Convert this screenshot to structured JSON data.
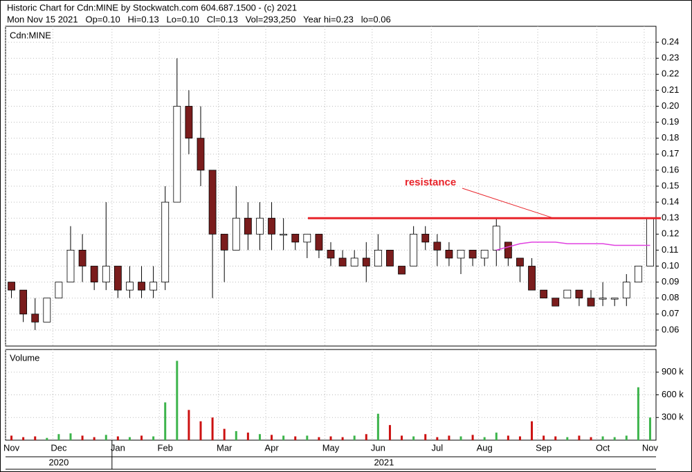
{
  "header": {
    "line1": "Historic Chart for Cdn:MINE by Stockwatch.com 604.687.1500 - (c) 2021",
    "line2": "Mon Nov 15 2021   Op=0.10   Hi=0.13   Lo=0.10   Cl=0.13   Vol=293,250   Year hi=0.23   lo=0.06"
  },
  "chart_data": [
    {
      "type": "candlestick",
      "title": "Cdn:MINE",
      "open": [
        0.09,
        0.085,
        0.07,
        0.065,
        0.08,
        0.09,
        0.11,
        0.1,
        0.09,
        0.1,
        0.085,
        0.09,
        0.085,
        0.09,
        0.14,
        0.2,
        0.18,
        0.16,
        0.12,
        0.11,
        0.13,
        0.12,
        0.13,
        0.12,
        0.12,
        0.115,
        0.12,
        0.11,
        0.105,
        0.1,
        0.105,
        0.1,
        0.11,
        0.1,
        0.1,
        0.12,
        0.115,
        0.11,
        0.105,
        0.11,
        0.105,
        0.11,
        0.115,
        0.105,
        0.1,
        0.085,
        0.08,
        0.08,
        0.085,
        0.08,
        0.08,
        0.08,
        0.08,
        0.09,
        0.1
      ],
      "high": [
        0.09,
        0.085,
        0.08,
        0.08,
        0.09,
        0.125,
        0.12,
        0.1,
        0.14,
        0.1,
        0.1,
        0.1,
        0.1,
        0.15,
        0.23,
        0.21,
        0.2,
        0.16,
        0.12,
        0.15,
        0.14,
        0.14,
        0.14,
        0.13,
        0.12,
        0.12,
        0.12,
        0.115,
        0.11,
        0.11,
        0.115,
        0.12,
        0.11,
        0.1,
        0.125,
        0.125,
        0.12,
        0.115,
        0.11,
        0.11,
        0.11,
        0.13,
        0.115,
        0.105,
        0.105,
        0.085,
        0.08,
        0.085,
        0.085,
        0.085,
        0.09,
        0.08,
        0.095,
        0.1,
        0.13
      ],
      "low": [
        0.08,
        0.065,
        0.06,
        0.065,
        0.08,
        0.09,
        0.09,
        0.085,
        0.085,
        0.08,
        0.08,
        0.08,
        0.08,
        0.085,
        0.14,
        0.17,
        0.15,
        0.08,
        0.09,
        0.11,
        0.11,
        0.11,
        0.11,
        0.11,
        0.11,
        0.105,
        0.105,
        0.1,
        0.1,
        0.1,
        0.09,
        0.1,
        0.1,
        0.095,
        0.1,
        0.11,
        0.1,
        0.1,
        0.095,
        0.1,
        0.1,
        0.1,
        0.1,
        0.09,
        0.085,
        0.08,
        0.075,
        0.08,
        0.075,
        0.075,
        0.075,
        0.075,
        0.075,
        0.09,
        0.1
      ],
      "close": [
        0.085,
        0.07,
        0.065,
        0.08,
        0.09,
        0.11,
        0.1,
        0.09,
        0.1,
        0.085,
        0.09,
        0.085,
        0.09,
        0.14,
        0.2,
        0.18,
        0.16,
        0.12,
        0.11,
        0.13,
        0.12,
        0.13,
        0.12,
        0.12,
        0.115,
        0.12,
        0.11,
        0.105,
        0.1,
        0.105,
        0.1,
        0.11,
        0.1,
        0.095,
        0.12,
        0.115,
        0.11,
        0.105,
        0.11,
        0.105,
        0.11,
        0.125,
        0.105,
        0.1,
        0.085,
        0.08,
        0.075,
        0.085,
        0.08,
        0.075,
        0.08,
        0.08,
        0.09,
        0.1,
        0.13
      ],
      "up_color": "#ffffff",
      "down_color": "#7a1c1c",
      "ylim": [
        0.05,
        0.25
      ],
      "yticks": [
        0.06,
        0.07,
        0.08,
        0.09,
        {
          "value": 0.1,
          "label": "0.10"
        },
        0.11,
        0.12,
        0.13,
        0.14,
        0.15,
        0.16,
        0.17,
        0.18,
        0.19,
        {
          "value": 0.2,
          "label": "0.20"
        },
        0.21,
        0.22,
        0.23,
        0.24
      ],
      "grid": true,
      "moving_average": {
        "color": "#e040e0",
        "values": [
          null,
          null,
          null,
          null,
          null,
          null,
          null,
          null,
          null,
          null,
          null,
          null,
          null,
          null,
          null,
          null,
          null,
          null,
          null,
          null,
          null,
          null,
          null,
          null,
          null,
          null,
          null,
          null,
          null,
          null,
          null,
          null,
          null,
          null,
          null,
          null,
          null,
          null,
          null,
          null,
          null,
          0.11,
          0.112,
          0.114,
          0.115,
          0.115,
          0.115,
          0.114,
          0.114,
          0.114,
          0.114,
          0.113,
          0.113,
          0.113,
          0.113
        ]
      },
      "resistance": {
        "label": "resistance",
        "value": 0.13,
        "color": "#e8232a"
      }
    },
    {
      "type": "bar",
      "title": "Volume",
      "categories": [
        "Nov",
        null,
        null,
        null,
        "Dec",
        null,
        null,
        null,
        null,
        "Jan",
        null,
        null,
        null,
        "Feb",
        null,
        null,
        null,
        null,
        "Mar",
        null,
        null,
        null,
        "Apr",
        null,
        null,
        null,
        null,
        "May",
        null,
        null,
        null,
        "Jun",
        null,
        null,
        null,
        null,
        "Jul",
        null,
        null,
        null,
        "Aug",
        null,
        null,
        null,
        null,
        "Sep",
        null,
        null,
        null,
        null,
        "Oct",
        null,
        null,
        null,
        "Nov"
      ],
      "values": [
        60000,
        40000,
        50000,
        30000,
        80000,
        90000,
        60000,
        40000,
        70000,
        50000,
        40000,
        60000,
        50000,
        500000,
        1050000,
        400000,
        250000,
        300000,
        150000,
        120000,
        100000,
        80000,
        70000,
        60000,
        50000,
        60000,
        40000,
        50000,
        40000,
        60000,
        80000,
        350000,
        200000,
        60000,
        50000,
        80000,
        40000,
        60000,
        50000,
        70000,
        40000,
        100000,
        60000,
        50000,
        250000,
        60000,
        50000,
        40000,
        60000,
        40000,
        50000,
        40000,
        60000,
        700000,
        300000
      ],
      "up_color": "#3cb44b",
      "down_color": "#cc1111",
      "ylim": [
        0,
        1200000
      ],
      "yticks": [
        {
          "value": 300000,
          "label": "300 k"
        },
        {
          "value": 600000,
          "label": "600 k"
        },
        {
          "value": 900000,
          "label": "900 k"
        }
      ],
      "year_labels": [
        "2020",
        "2021"
      ]
    }
  ]
}
